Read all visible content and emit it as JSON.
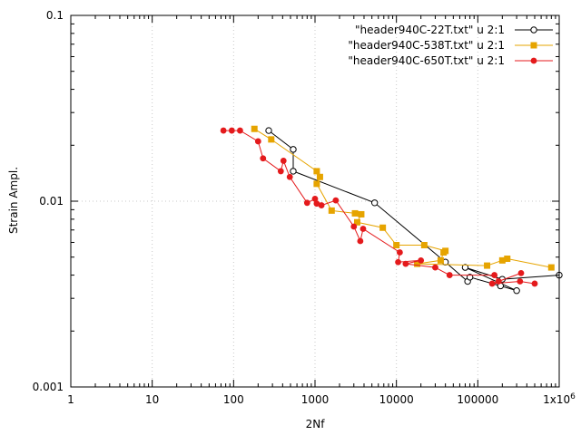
{
  "chart_data": {
    "type": "scatter",
    "xlabel": "2Nf",
    "ylabel": "Strain Ampl.",
    "xscale": "log",
    "yscale": "log",
    "xlim": [
      1,
      1000000
    ],
    "ylim": [
      0.001,
      0.1
    ],
    "grid": true,
    "legend_position": "top-right",
    "x_tick_labels": [
      "1",
      "10",
      "100",
      "1000",
      "10000",
      "100000",
      "1x10^6"
    ],
    "y_tick_labels": [
      "0.001",
      "0.01",
      "0.1"
    ],
    "series": [
      {
        "name": "\"header940C-22T.txt\" u 2:1",
        "color": "#000000",
        "marker": "open-circle",
        "points": [
          [
            270,
            0.024
          ],
          [
            540,
            0.019
          ],
          [
            540,
            0.0145
          ],
          [
            5400,
            0.0098
          ],
          [
            40000,
            0.0047
          ],
          [
            75000,
            0.0037
          ],
          [
            80000,
            0.0039
          ],
          [
            190000,
            0.0035
          ],
          [
            300000,
            0.0033
          ],
          [
            70000,
            0.0044
          ],
          [
            200000,
            0.0038
          ],
          [
            1000000,
            0.004
          ]
        ]
      },
      {
        "name": "\"header940C-538T.txt\" u 2:1",
        "color": "#e6a400",
        "marker": "filled-square",
        "points": [
          [
            180,
            0.0245
          ],
          [
            290,
            0.0215
          ],
          [
            1050,
            0.0145
          ],
          [
            1150,
            0.0135
          ],
          [
            1050,
            0.0124
          ],
          [
            1600,
            0.0089
          ],
          [
            3100,
            0.0086
          ],
          [
            3700,
            0.0085
          ],
          [
            3300,
            0.0077
          ],
          [
            6800,
            0.0072
          ],
          [
            10000,
            0.0058
          ],
          [
            22000,
            0.0058
          ],
          [
            40000,
            0.0054
          ],
          [
            38000,
            0.0053
          ],
          [
            35000,
            0.0048
          ],
          [
            18000,
            0.0046
          ],
          [
            130000,
            0.0045
          ],
          [
            200000,
            0.0048
          ],
          [
            230000,
            0.0049
          ],
          [
            800000,
            0.0044
          ]
        ]
      },
      {
        "name": "\"header940C-650T.txt\" u 2:1",
        "color": "#e41a1c",
        "marker": "filled-circle",
        "points": [
          [
            75,
            0.024
          ],
          [
            95,
            0.024
          ],
          [
            120,
            0.024
          ],
          [
            200,
            0.021
          ],
          [
            230,
            0.017
          ],
          [
            380,
            0.0145
          ],
          [
            410,
            0.0165
          ],
          [
            490,
            0.0135
          ],
          [
            800,
            0.0098
          ],
          [
            1000,
            0.0103
          ],
          [
            1050,
            0.0097
          ],
          [
            1200,
            0.0095
          ],
          [
            1800,
            0.0101
          ],
          [
            3000,
            0.0073
          ],
          [
            3600,
            0.0061
          ],
          [
            3900,
            0.0071
          ],
          [
            11000,
            0.0053
          ],
          [
            10500,
            0.0047
          ],
          [
            20000,
            0.0048
          ],
          [
            13000,
            0.0046
          ],
          [
            30000,
            0.0044
          ],
          [
            45000,
            0.004
          ],
          [
            160000,
            0.004
          ],
          [
            180000,
            0.0037
          ],
          [
            340000,
            0.0041
          ],
          [
            150000,
            0.0036
          ],
          [
            330000,
            0.0037
          ],
          [
            500000,
            0.0036
          ]
        ]
      }
    ]
  }
}
